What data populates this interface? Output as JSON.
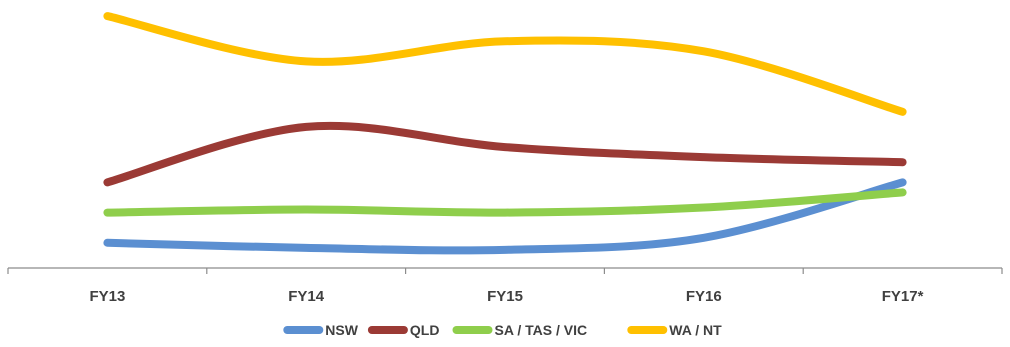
{
  "chart_data": {
    "type": "line",
    "categories": [
      "FY13",
      "FY14",
      "FY15",
      "FY16",
      "FY17*"
    ],
    "series": [
      {
        "name": "NSW",
        "values": [
          2.5,
          2.0,
          1.8,
          3.0,
          8.5
        ],
        "color": "#5b8fd1"
      },
      {
        "name": "QLD",
        "values": [
          8.5,
          14.0,
          12.0,
          11.0,
          10.5
        ],
        "color": "#9b3a35"
      },
      {
        "name": "SA / TAS / VIC",
        "values": [
          5.5,
          5.8,
          5.5,
          6.0,
          7.5
        ],
        "color": "#8fce4c"
      },
      {
        "name": "WA / NT",
        "values": [
          25.0,
          20.5,
          22.5,
          21.5,
          15.5
        ],
        "color": "#ffc000"
      }
    ],
    "ylim": [
      0,
      26
    ],
    "grid": false,
    "legend": "bottom",
    "smooth": true
  }
}
